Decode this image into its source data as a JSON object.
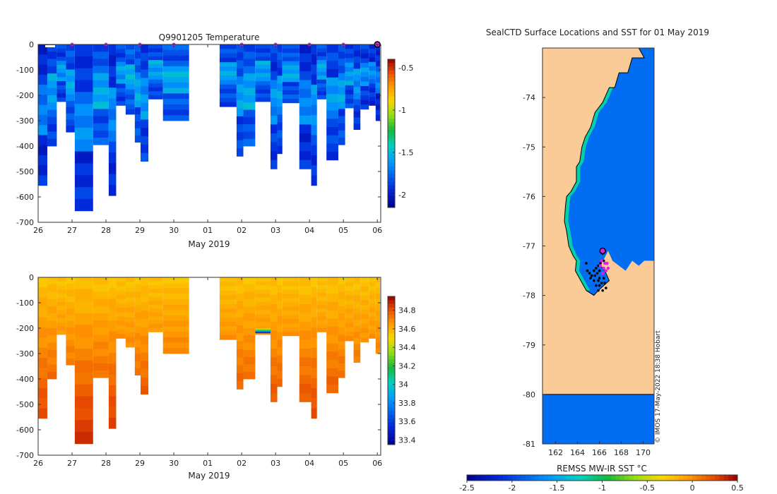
{
  "colors": {
    "land": "#fbcb97",
    "sst_ocean": "#1296f2",
    "sst_shelf": "#16b33f",
    "track_black": "#000000",
    "marker_magenta": "#e020e0"
  },
  "temperature_panel": {
    "title": "Q9901205  Temperature",
    "xlabel": "May 2019",
    "x_ticks": [
      "26",
      "27",
      "28",
      "29",
      "30",
      "01",
      "02",
      "03",
      "04",
      "05",
      "06"
    ],
    "y_ticks": [
      "0",
      "-100",
      "-200",
      "-300",
      "-400",
      "-500",
      "-600",
      "-700"
    ],
    "colorbar_ticks": [
      "-0.5",
      "-1",
      "-1.5",
      "-2"
    ]
  },
  "salinity_panel": {
    "xlabel": "May 2019",
    "x_ticks": [
      "26",
      "27",
      "28",
      "29",
      "30",
      "01",
      "02",
      "03",
      "04",
      "05",
      "06"
    ],
    "y_ticks": [
      "0",
      "-100",
      "-200",
      "-300",
      "-400",
      "-500",
      "-600",
      "-700"
    ],
    "colorbar_ticks": [
      "34.8",
      "34.6",
      "34.4",
      "34.2",
      "34",
      "33.8",
      "33.6",
      "33.4"
    ]
  },
  "map_panel": {
    "title": "SealCTD Surface Locations and SST for 01 May 2019",
    "y_ticks": [
      "-74",
      "-75",
      "-76",
      "-77",
      "-78",
      "-79",
      "-80",
      "-81"
    ],
    "x_ticks": [
      "162",
      "164",
      "166",
      "168",
      "170"
    ],
    "colorbar_label": "REMSS MW-IR SST °C",
    "colorbar_ticks": [
      "-2.5",
      "-2",
      "-1.5",
      "-1",
      "-0.5",
      "0",
      "0.5"
    ],
    "credit": "© IMOS 17-May-2022 18:38 Hobart"
  },
  "chart_data": [
    {
      "type": "heatmap",
      "title": "Q9901205  Temperature",
      "xlabel": "May 2019",
      "ylabel": "",
      "x_unit": "days since 26 Apr 2019 00:00",
      "xlim": [
        0,
        10.1
      ],
      "ylim": [
        -700,
        0
      ],
      "clim": [
        -2.15,
        -0.4
      ],
      "colorbar_ticks": [
        -0.5,
        -1,
        -1.5,
        -2
      ],
      "surface_markers_days": [
        1,
        2,
        3,
        4,
        6,
        7,
        8,
        9,
        10
      ],
      "profiles": [
        {
          "t0": 0.0,
          "t1": 0.27,
          "depth": 555,
          "value": -1.95
        },
        {
          "t0": 0.27,
          "t1": 0.55,
          "depth": 400,
          "value": -1.85
        },
        {
          "t0": 0.55,
          "t1": 0.82,
          "depth": 225,
          "value": -1.88
        },
        {
          "t0": 0.82,
          "t1": 1.08,
          "depth": 345,
          "value": -1.84
        },
        {
          "t0": 1.08,
          "t1": 1.62,
          "depth": 655,
          "value": -1.93
        },
        {
          "t0": 1.62,
          "t1": 2.08,
          "depth": 395,
          "value": -1.82
        },
        {
          "t0": 2.08,
          "t1": 2.3,
          "depth": 595,
          "value": -1.92
        },
        {
          "t0": 2.3,
          "t1": 2.58,
          "depth": 240,
          "value": -1.86
        },
        {
          "t0": 2.58,
          "t1": 2.85,
          "depth": 275,
          "value": -1.8
        },
        {
          "t0": 2.85,
          "t1": 3.02,
          "depth": 385,
          "value": -1.83
        },
        {
          "t0": 3.02,
          "t1": 3.25,
          "depth": 460,
          "value": -1.88
        },
        {
          "t0": 3.25,
          "t1": 3.68,
          "depth": 215,
          "value": -1.84
        },
        {
          "t0": 3.68,
          "t1": 4.45,
          "depth": 300,
          "value": -1.82
        },
        {
          "t0": 5.35,
          "t1": 5.85,
          "depth": 245,
          "value": -1.85
        },
        {
          "t0": 5.85,
          "t1": 6.05,
          "depth": 440,
          "value": -1.86
        },
        {
          "t0": 6.05,
          "t1": 6.4,
          "depth": 400,
          "value": -1.82
        },
        {
          "t0": 6.4,
          "t1": 6.85,
          "depth": 225,
          "value": -1.84
        },
        {
          "t0": 6.85,
          "t1": 7.05,
          "depth": 490,
          "value": -1.9
        },
        {
          "t0": 7.05,
          "t1": 7.2,
          "depth": 430,
          "value": -1.86
        },
        {
          "t0": 7.2,
          "t1": 7.7,
          "depth": 230,
          "value": -1.84
        },
        {
          "t0": 7.7,
          "t1": 8.05,
          "depth": 490,
          "value": -1.93
        },
        {
          "t0": 8.05,
          "t1": 8.22,
          "depth": 555,
          "value": -1.9
        },
        {
          "t0": 8.22,
          "t1": 8.5,
          "depth": 215,
          "value": -1.84
        },
        {
          "t0": 8.5,
          "t1": 8.85,
          "depth": 455,
          "value": -1.88
        },
        {
          "t0": 8.85,
          "t1": 9.05,
          "depth": 395,
          "value": -1.85
        },
        {
          "t0": 9.05,
          "t1": 9.3,
          "depth": 250,
          "value": -1.86
        },
        {
          "t0": 9.3,
          "t1": 9.5,
          "depth": 335,
          "value": -1.88
        },
        {
          "t0": 9.5,
          "t1": 9.75,
          "depth": 255,
          "value": -1.9
        },
        {
          "t0": 9.75,
          "t1": 9.95,
          "depth": 240,
          "value": -1.93
        },
        {
          "t0": 9.95,
          "t1": 10.08,
          "depth": 300,
          "value": -1.96
        }
      ]
    },
    {
      "type": "heatmap",
      "title": "",
      "xlabel": "May 2019",
      "ylabel": "",
      "x_unit": "days since 26 Apr 2019 00:00",
      "xlim": [
        0,
        10.1
      ],
      "ylim": [
        -700,
        0
      ],
      "clim": [
        33.35,
        34.95
      ],
      "colorbar_ticks": [
        34.8,
        34.6,
        34.4,
        34.2,
        34,
        33.8,
        33.6,
        33.4
      ],
      "surface_value": 34.55,
      "deep_value": 34.85,
      "profiles": [
        {
          "t0": 0.0,
          "t1": 0.27,
          "depth": 555
        },
        {
          "t0": 0.27,
          "t1": 0.55,
          "depth": 400
        },
        {
          "t0": 0.55,
          "t1": 0.82,
          "depth": 225
        },
        {
          "t0": 0.82,
          "t1": 1.08,
          "depth": 345
        },
        {
          "t0": 1.08,
          "t1": 1.62,
          "depth": 655
        },
        {
          "t0": 1.62,
          "t1": 2.08,
          "depth": 395
        },
        {
          "t0": 2.08,
          "t1": 2.3,
          "depth": 595
        },
        {
          "t0": 2.3,
          "t1": 2.58,
          "depth": 240
        },
        {
          "t0": 2.58,
          "t1": 2.85,
          "depth": 275
        },
        {
          "t0": 2.85,
          "t1": 3.02,
          "depth": 385
        },
        {
          "t0": 3.02,
          "t1": 3.25,
          "depth": 460
        },
        {
          "t0": 3.25,
          "t1": 3.68,
          "depth": 215
        },
        {
          "t0": 3.68,
          "t1": 4.45,
          "depth": 300
        },
        {
          "t0": 5.35,
          "t1": 5.85,
          "depth": 245
        },
        {
          "t0": 5.85,
          "t1": 6.05,
          "depth": 440
        },
        {
          "t0": 6.05,
          "t1": 6.4,
          "depth": 400
        },
        {
          "t0": 6.4,
          "t1": 6.85,
          "depth": 225
        },
        {
          "t0": 6.85,
          "t1": 7.05,
          "depth": 490
        },
        {
          "t0": 7.05,
          "t1": 7.2,
          "depth": 430
        },
        {
          "t0": 7.2,
          "t1": 7.7,
          "depth": 230
        },
        {
          "t0": 7.7,
          "t1": 8.05,
          "depth": 490
        },
        {
          "t0": 8.05,
          "t1": 8.22,
          "depth": 555
        },
        {
          "t0": 8.22,
          "t1": 8.5,
          "depth": 215
        },
        {
          "t0": 8.5,
          "t1": 8.85,
          "depth": 455
        },
        {
          "t0": 8.85,
          "t1": 9.05,
          "depth": 395
        },
        {
          "t0": 9.05,
          "t1": 9.3,
          "depth": 250
        },
        {
          "t0": 9.3,
          "t1": 9.5,
          "depth": 335
        },
        {
          "t0": 9.5,
          "t1": 9.75,
          "depth": 255
        },
        {
          "t0": 9.75,
          "t1": 9.95,
          "depth": 240
        },
        {
          "t0": 9.95,
          "t1": 10.08,
          "depth": 300
        }
      ],
      "anomaly": {
        "t0": 6.4,
        "t1": 6.85,
        "depth_top": 200,
        "depth_bottom": 220,
        "values": [
          34.4,
          34.1,
          33.6
        ]
      }
    },
    {
      "type": "map",
      "title": "SealCTD Surface Locations and SST for 01 May 2019",
      "xlabel": "",
      "ylabel": "",
      "lon_range": [
        160.8,
        171.0
      ],
      "lat_range": [
        -81.0,
        -73.0
      ],
      "x_ticks": [
        162,
        164,
        166,
        168,
        170
      ],
      "y_ticks": [
        -74,
        -75,
        -76,
        -77,
        -78,
        -79,
        -80,
        -81
      ],
      "colorbar": {
        "label": "REMSS MW-IR SST °C",
        "clim": [
          -2.5,
          0.5
        ],
        "ticks": [
          -2.5,
          -2,
          -1.5,
          -1,
          -0.5,
          0,
          0.5
        ]
      },
      "ocean_sst": -1.8,
      "shelf_sst": -1.2,
      "coast": [
        [
          169.6,
          -73.0
        ],
        [
          170.1,
          -73.2
        ],
        [
          169.0,
          -73.2
        ],
        [
          168.6,
          -73.5
        ],
        [
          167.8,
          -73.5
        ],
        [
          167.4,
          -73.8
        ],
        [
          166.9,
          -73.8
        ],
        [
          166.3,
          -74.1
        ],
        [
          165.6,
          -74.3
        ],
        [
          165.2,
          -74.6
        ],
        [
          164.7,
          -74.8
        ],
        [
          164.4,
          -75.0
        ],
        [
          164.2,
          -75.3
        ],
        [
          163.9,
          -75.4
        ],
        [
          163.9,
          -75.7
        ],
        [
          163.4,
          -75.9
        ],
        [
          163.0,
          -76.0
        ],
        [
          162.9,
          -76.2
        ],
        [
          162.8,
          -76.5
        ],
        [
          163.0,
          -76.7
        ],
        [
          163.2,
          -77.0
        ],
        [
          163.6,
          -77.2
        ],
        [
          163.9,
          -77.3
        ],
        [
          163.8,
          -77.5
        ],
        [
          164.3,
          -77.7
        ],
        [
          164.8,
          -77.9
        ],
        [
          165.5,
          -78.0
        ],
        [
          165.9,
          -77.9
        ],
        [
          166.4,
          -77.8
        ],
        [
          166.9,
          -77.7
        ],
        [
          166.5,
          -77.5
        ],
        [
          166.1,
          -77.4
        ],
        [
          166.8,
          -77.1
        ],
        [
          167.2,
          -77.3
        ],
        [
          167.8,
          -77.4
        ],
        [
          168.4,
          -77.5
        ],
        [
          169.0,
          -77.3
        ],
        [
          169.6,
          -77.4
        ],
        [
          170.1,
          -77.3
        ],
        [
          171.0,
          -77.3
        ],
        [
          171.0,
          -73.0
        ]
      ],
      "ice_shelf_boundary_lat": -80.0,
      "tracks": [
        [
          166.3,
          -77.15
        ],
        [
          166.4,
          -77.3
        ],
        [
          166.1,
          -77.35
        ],
        [
          165.9,
          -77.4
        ],
        [
          165.7,
          -77.45
        ],
        [
          165.5,
          -77.5
        ],
        [
          166.0,
          -77.5
        ],
        [
          166.3,
          -77.55
        ],
        [
          165.8,
          -77.55
        ],
        [
          165.3,
          -77.6
        ],
        [
          165.6,
          -77.6
        ],
        [
          166.0,
          -77.65
        ],
        [
          166.4,
          -77.65
        ],
        [
          165.2,
          -77.65
        ],
        [
          165.5,
          -77.7
        ],
        [
          165.9,
          -77.7
        ],
        [
          166.2,
          -77.75
        ],
        [
          166.5,
          -77.75
        ],
        [
          165.7,
          -77.8
        ],
        [
          166.0,
          -77.8
        ],
        [
          166.6,
          -77.85
        ],
        [
          166.3,
          -77.9
        ],
        [
          165.9,
          -77.9
        ],
        [
          164.8,
          -77.35
        ],
        [
          164.9,
          -77.5
        ],
        [
          165.1,
          -77.55
        ]
      ],
      "magenta_points": [
        [
          166.2,
          -77.3
        ],
        [
          166.5,
          -77.35
        ],
        [
          166.7,
          -77.35
        ],
        [
          166.1,
          -77.4
        ],
        [
          166.4,
          -77.45
        ],
        [
          166.6,
          -77.5
        ],
        [
          166.3,
          -77.55
        ],
        [
          166.8,
          -77.45
        ]
      ],
      "latest_position": [
        166.3,
        -77.1
      ],
      "credit": "© IMOS 17-May-2022 18:38 Hobart"
    }
  ]
}
